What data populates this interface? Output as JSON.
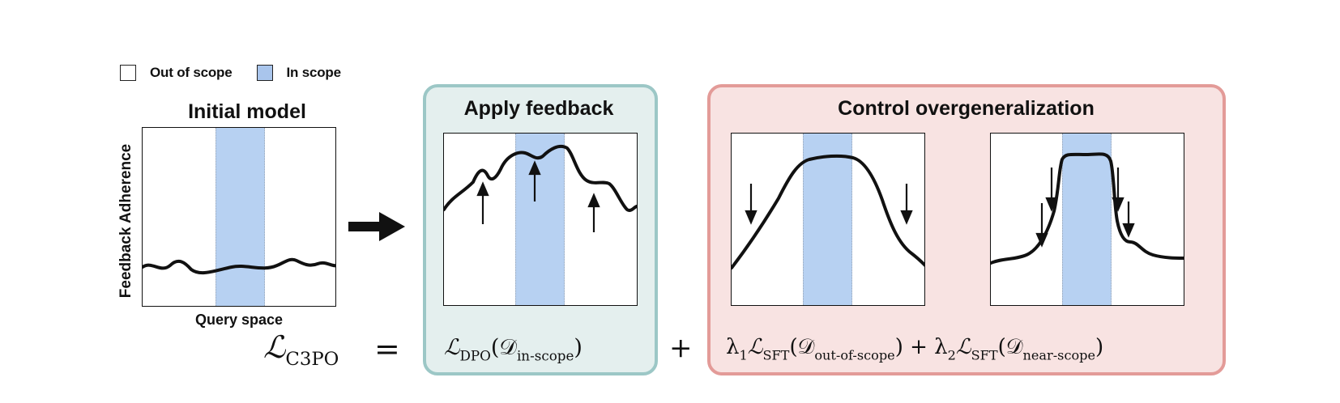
{
  "legend": {
    "out_of_scope": "Out of scope",
    "in_scope": "In scope"
  },
  "initial_model": {
    "title": "Initial model",
    "y_label": "Feedback Adherence",
    "x_label": "Query space"
  },
  "apply_feedback": {
    "title": "Apply feedback"
  },
  "control_overgeneralization": {
    "title": "Control overgeneralization"
  },
  "formula": {
    "lhs": "ℒ",
    "lhs_sub": "C3PO",
    "equals": "=",
    "dpo": "ℒ",
    "dpo_sub": "DPO",
    "dpo_arg": "(𝒟",
    "dpo_arg_sub": "in-scope",
    "dpo_close": ")",
    "plus": "+",
    "lambda1": "λ",
    "lambda1_sub": "1",
    "sft1": "ℒ",
    "sft1_sub": "SFT",
    "sft1_arg": "(𝒟",
    "sft1_arg_sub": "out-of-scope",
    "sft1_close": ") +",
    "lambda2": "λ",
    "lambda2_sub": "2",
    "sft2": "ℒ",
    "sft2_sub": "SFT",
    "sft2_arg": "(𝒟",
    "sft2_arg_sub": "near-scope",
    "sft2_close": ")"
  },
  "colors": {
    "in_scope_band": "#b7d1f2",
    "apply_panel_bg": "#e4efee",
    "apply_panel_border": "#9cc7c6",
    "control_panel_bg": "#f8e3e2",
    "control_panel_border": "#e39b98"
  }
}
